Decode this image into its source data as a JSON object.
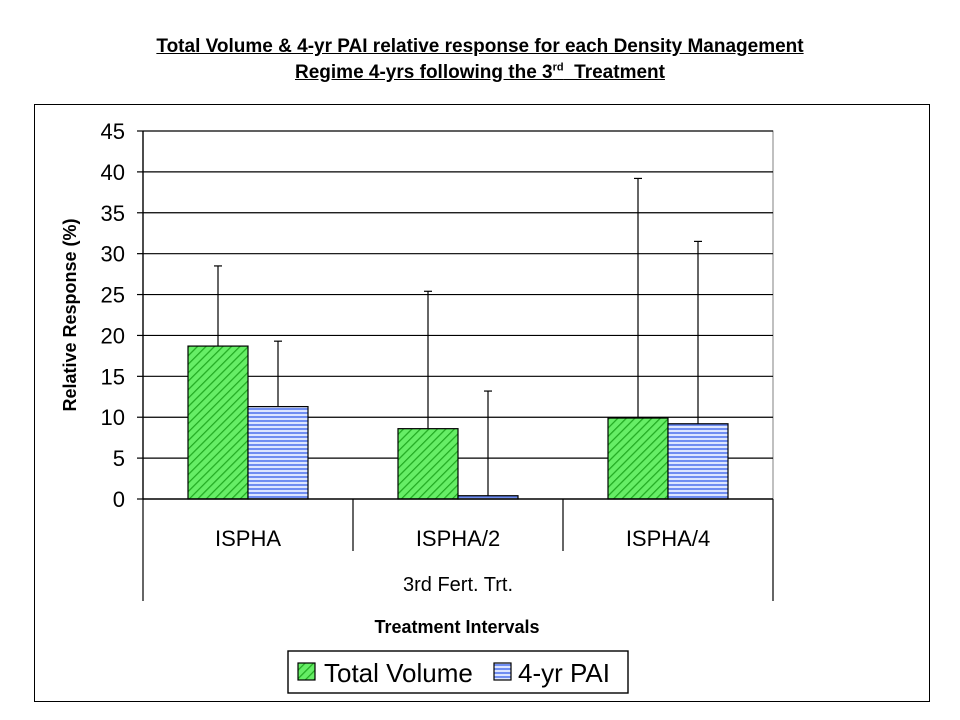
{
  "title_line1": "Total Volume & 4-yr PAI relative response for each Density Management",
  "title_line2_pre": "Regime 4-yrs following the 3",
  "title_line2_sup": "rd",
  "title_line2_post": "  Treatment",
  "chart_data": {
    "type": "bar",
    "categories": [
      "ISPHA",
      "ISPHA/2",
      "ISPHA/4"
    ],
    "group_label": "3rd Fert. Trt.",
    "xlabel": "Treatment Intervals",
    "ylabel": "Relative Response (%)",
    "ylim": [
      0,
      45
    ],
    "yticks": [
      0,
      5,
      10,
      15,
      20,
      25,
      30,
      35,
      40,
      45
    ],
    "grid": true,
    "legend_position": "bottom",
    "series": [
      {
        "name": "Total Volume",
        "values": [
          18.7,
          8.6,
          9.9
        ],
        "error_upper": [
          28.5,
          25.4,
          39.2
        ],
        "color": "#33cc33",
        "pattern": "diagonal-hatch"
      },
      {
        "name": "4-yr PAI",
        "values": [
          11.3,
          0.4,
          9.2
        ],
        "error_upper": [
          19.3,
          13.2,
          31.5
        ],
        "color": "#6688ee",
        "pattern": "horizontal-lines"
      }
    ]
  }
}
